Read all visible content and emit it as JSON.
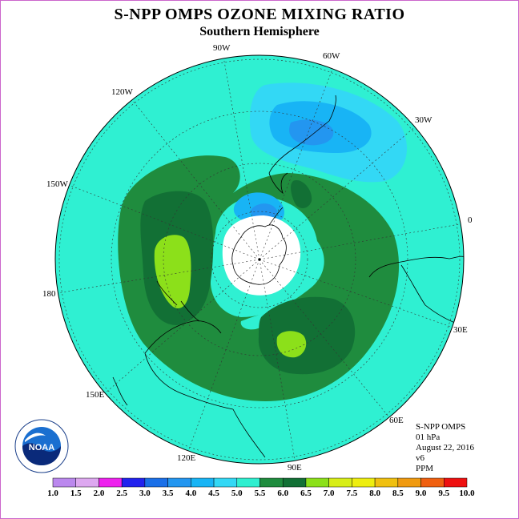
{
  "title": "S-NPP OMPS OZONE MIXING RATIO",
  "subtitle": "Southern Hemisphere",
  "longitude_labels": {
    "lon_90W": "90W",
    "lon_60W": "60W",
    "lon_30W": "30W",
    "lon_0": "0",
    "lon_30E": "30E",
    "lon_60E": "60E",
    "lon_90E": "90E",
    "lon_120E": "120E",
    "lon_150E": "150E",
    "lon_180": "180",
    "lon_150W": "150W",
    "lon_120W": "120W"
  },
  "info": {
    "instrument": "S-NPP OMPS",
    "pressure_level": "01 hPa",
    "date": "August 22, 2016",
    "version": "v6",
    "units": "PPM"
  },
  "colorbar": {
    "ticks": [
      "1.0",
      "1.5",
      "2.0",
      "2.5",
      "3.0",
      "3.5",
      "4.0",
      "4.5",
      "5.0",
      "5.5",
      "6.0",
      "6.5",
      "7.0",
      "7.5",
      "8.0",
      "8.5",
      "9.0",
      "9.5",
      "10.0"
    ],
    "colors": [
      "#bb88ee",
      "#dda8f0",
      "#ee22ee",
      "#2222ee",
      "#1a6fe8",
      "#2396f0",
      "#18b4f5",
      "#33d8f5",
      "#2fefd0",
      "#1f8c3e",
      "#127035",
      "#8ce01a",
      "#d8ee18",
      "#eeee10",
      "#f0c010",
      "#f09a10",
      "#f06010",
      "#ee1010",
      "#a0522d"
    ]
  },
  "logo_text": "NOAA",
  "colors": {
    "background_field": "#2ff0d2",
    "pole_mask": "#ffffff",
    "frame_border": "#cc66cc"
  }
}
